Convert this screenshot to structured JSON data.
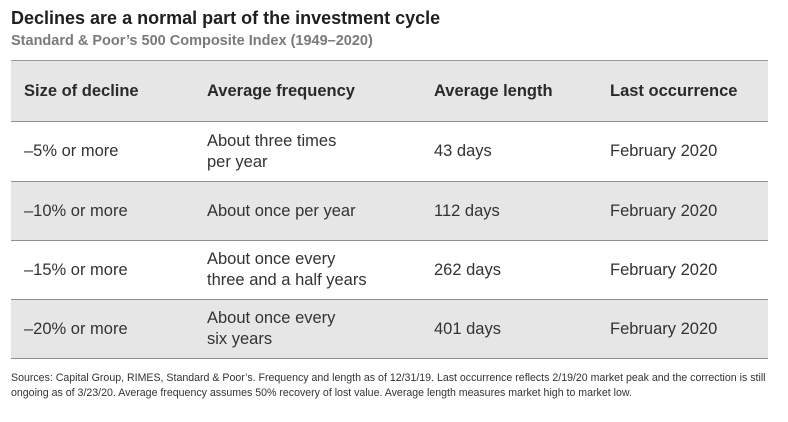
{
  "title": "Declines are a normal part of the investment cycle",
  "subtitle": "Standard & Poor’s 500 Composite Index (1949–2020)",
  "table": {
    "headers": [
      "Size of decline",
      "Average frequency",
      "Average length",
      "Last occurrence"
    ],
    "rows": [
      {
        "size": "–5% or more",
        "frequency": "About three times\nper year",
        "length": "43 days",
        "last": "February 2020"
      },
      {
        "size": "–10% or more",
        "frequency": "About once per year",
        "length": "112 days",
        "last": "February 2020"
      },
      {
        "size": "–15% or more",
        "frequency": "About once every\nthree and a half years",
        "length": "262 days",
        "last": "February 2020"
      },
      {
        "size": "–20% or more",
        "frequency": "About once every\nsix years",
        "length": "401 days",
        "last": "February 2020"
      }
    ]
  },
  "footnote": "Sources: Capital Group, RIMES, Standard & Poor’s. Frequency and length as of 12/31/19. Last occurrence reflects 2/19/20 market peak and the correction is still ongoing as of 3/23/20. Average frequency assumes 50% recovery of lost value. Average length measures market high to market low."
}
